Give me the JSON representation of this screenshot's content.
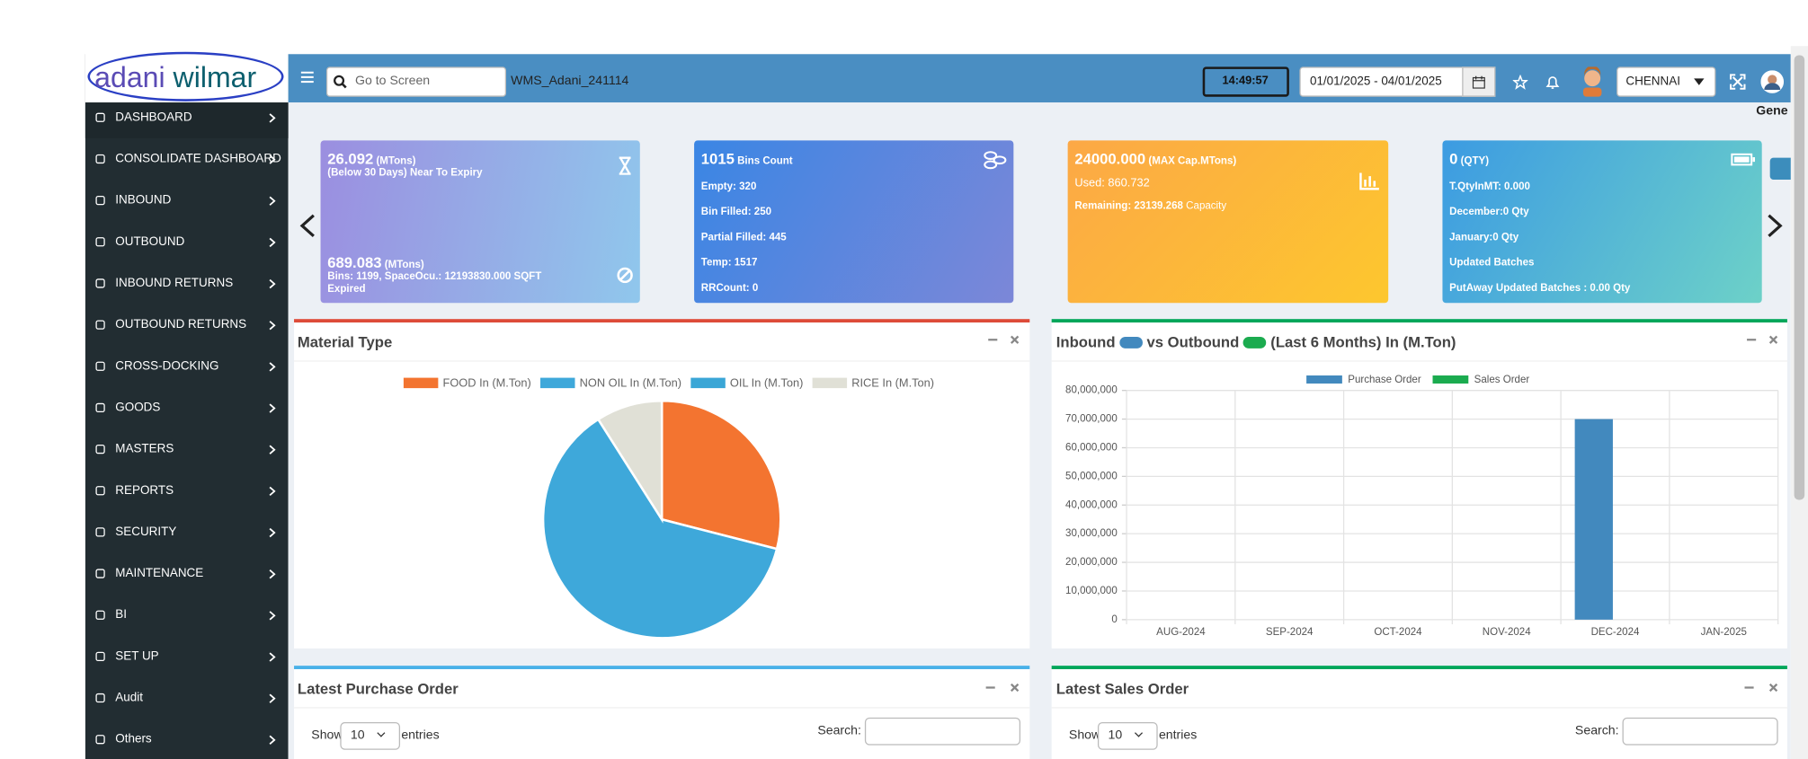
{
  "logo": {
    "part1": "adani",
    "part2": "wilmar"
  },
  "sidebar": {
    "menu": [
      "DASHBOARD",
      "CONSOLIDATE DASHBOARD",
      "INBOUND",
      "OUTBOUND",
      "INBOUND RETURNS",
      "OUTBOUND RETURNS",
      "CROSS-DOCKING",
      "GOODS",
      "MASTERS",
      "REPORTS",
      "SECURITY",
      "MAINTENANCE",
      "BI",
      "SET UP",
      "Audit",
      "Others"
    ]
  },
  "header": {
    "search_placeholder": "Go to Screen",
    "app_id": "WMS_Adani_241114",
    "time": "14:49:57",
    "date_range": "01/01/2025 - 04/01/2025",
    "location": "CHENNAI",
    "user_partial": "Gene"
  },
  "cards": [
    {
      "value": "26.092",
      "unit": "(MTons)",
      "note": "(Below 30 Days) Near To Expiry",
      "value2": "689.083",
      "unit2": "(MTons)",
      "detail": "Bins: 1199, SpaceOcu.: 12193830.000 SQFT",
      "status": "Expired"
    },
    {
      "value": "1015",
      "unit": "Bins Count",
      "lines": [
        "Empty: 320",
        "Bin Filled: 250",
        "Partial Filled: 445",
        "Temp: 1517",
        "RRCount: 0"
      ]
    },
    {
      "value": "24000.000",
      "unit": "(MAX Cap.MTons)",
      "used": "Used: 860.732",
      "remaining": "Remaining: 23139.268",
      "remaining_unit": "Capacity"
    },
    {
      "value": "0",
      "unit": "(QTY)",
      "lines": [
        "T.QtyInMT: 0.000",
        "December:0 Qty",
        "January:0 Qty",
        "Updated Batches",
        "PutAway Updated Batches : 0.00 Qty"
      ]
    }
  ],
  "panels": [
    {
      "title": "Material Type"
    },
    {
      "title_parts": [
        "Inbound",
        "vs Outbound",
        "(Last 6 Months) In (M.Ton)"
      ]
    },
    {
      "title": "Latest Purchase Order",
      "show": "Show",
      "entries_value": "10",
      "entries": "entries",
      "search": "Search:"
    },
    {
      "title": "Latest Sales Order",
      "show": "Show",
      "entries_value": "10",
      "entries": "entries",
      "search": "Search:"
    }
  ],
  "chart_data": [
    {
      "type": "pie",
      "categories": [
        "FOOD In (M.Ton)",
        "NON OIL In (M.Ton)",
        "OIL In (M.Ton)",
        "RICE In (M.Ton)"
      ],
      "values": [
        29,
        62,
        0,
        9
      ],
      "colors": [
        "#f37430",
        "#3ea8da",
        "#3aa6d6",
        "#e0e0d6"
      ]
    },
    {
      "type": "bar",
      "categories": [
        "AUG-2024",
        "SEP-2024",
        "OCT-2024",
        "NOV-2024",
        "DEC-2024",
        "JAN-2025"
      ],
      "series": [
        {
          "name": "Purchase Order",
          "color": "#4289be",
          "values": [
            0,
            0,
            0,
            0,
            70000000,
            0
          ]
        },
        {
          "name": "Sales Order",
          "color": "#1bab4f",
          "values": [
            0,
            0,
            0,
            0,
            0,
            0
          ]
        }
      ],
      "ylim": [
        0,
        80000000
      ],
      "yticks": [
        0,
        {
          "value": 10000000,
          "label": "10,000,000"
        },
        {
          "value": 20000000,
          "label": "20,000,000"
        },
        {
          "value": 30000000,
          "label": "30,000,000"
        },
        {
          "value": 40000000,
          "label": "40,000,000"
        },
        {
          "value": 50000000,
          "label": "50,000,000"
        },
        {
          "value": 60000000,
          "label": "60,000,000"
        },
        {
          "value": 70000000,
          "label": "70,000,000"
        },
        {
          "value": 80000000,
          "label": "80,000,000"
        }
      ],
      "grid": true
    }
  ]
}
